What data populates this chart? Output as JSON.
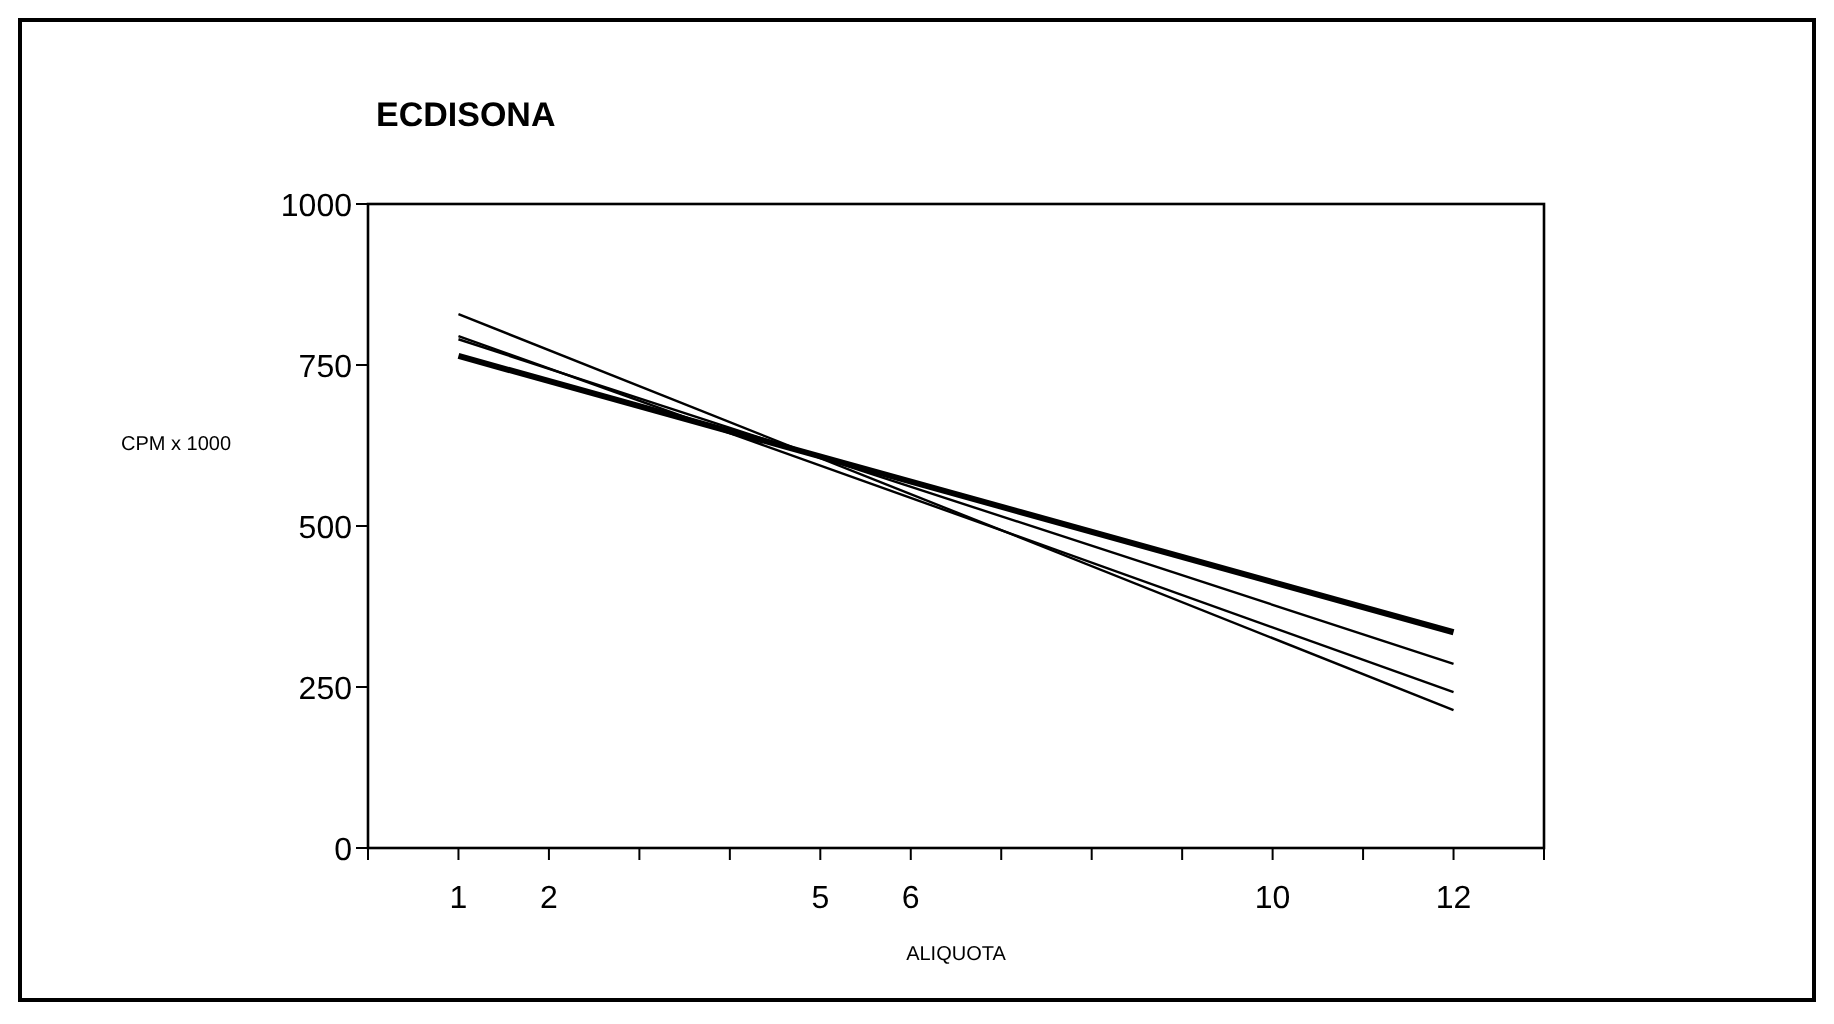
{
  "chart_data": {
    "type": "line",
    "title": "ECDISONA",
    "xlabel": "ALIQUOTA",
    "ylabel": "CPM x 1000",
    "x": [
      1,
      12
    ],
    "series": [
      {
        "color": "#000000",
        "values": [
          764,
          335
        ]
      },
      {
        "color": "#000000",
        "values": [
          829,
          214
        ]
      },
      {
        "color": "#000000",
        "values": [
          795,
          242
        ]
      },
      {
        "color": "#000000",
        "values": [
          790,
          286
        ]
      }
    ],
    "xlim": [
      0,
      13
    ],
    "xticks": [
      {
        "value": 0,
        "label": null
      },
      1,
      2,
      {
        "value": 3,
        "label": null
      },
      {
        "value": 4,
        "label": null
      },
      5,
      6,
      {
        "value": 7,
        "label": null
      },
      {
        "value": 8,
        "label": null
      },
      {
        "value": 9,
        "label": null
      },
      10,
      {
        "value": 11,
        "label": null
      },
      12,
      {
        "value": 13,
        "label": null
      }
    ],
    "ylim": [
      0,
      1000
    ],
    "yticks": [
      0,
      250,
      500,
      750,
      1000
    ],
    "grid": false,
    "marker": "none",
    "line_style": "solid"
  }
}
